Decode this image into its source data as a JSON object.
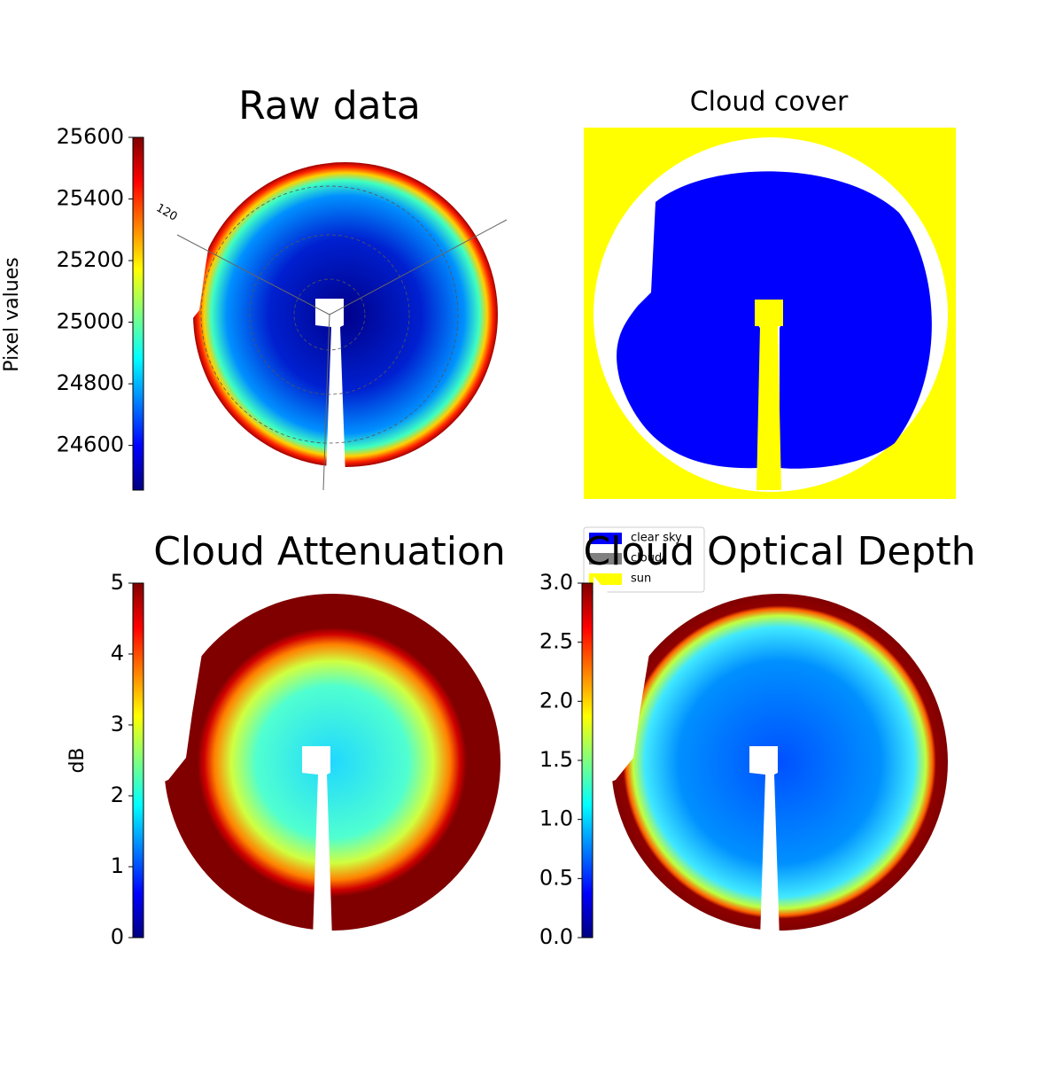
{
  "chart_data": [
    {
      "type": "image",
      "title": "Raw data",
      "colorbar_label": "Pixel values",
      "colormap": "jet",
      "ylim": [
        24455,
        25600
      ],
      "yticks": [
        24600,
        24800,
        25000,
        25200,
        25400,
        25600
      ],
      "annotations": [
        "120"
      ]
    },
    {
      "type": "classification",
      "title": "Cloud cover",
      "series": [
        {
          "name": "clear sky",
          "color": "#0000ff"
        },
        {
          "name": "cloud",
          "color": "#808080"
        },
        {
          "name": "sun",
          "color": "#ffff00"
        }
      ]
    },
    {
      "type": "image",
      "title": "Cloud Attenuation",
      "colorbar_label": "dB",
      "colormap": "jet",
      "ylim": [
        0,
        5
      ],
      "yticks": [
        0,
        1,
        2,
        3,
        4,
        5
      ]
    },
    {
      "type": "image",
      "title": "Cloud Optical Depth",
      "colormap": "jet",
      "ylim": [
        0,
        3
      ],
      "yticks": [
        {
          "value": 0,
          "label": "0.0"
        },
        0.5,
        {
          "value": 1,
          "label": "1.0"
        },
        1.5,
        {
          "value": 2,
          "label": "2.0"
        },
        2.5,
        {
          "value": 3,
          "label": "3.0"
        }
      ]
    }
  ]
}
